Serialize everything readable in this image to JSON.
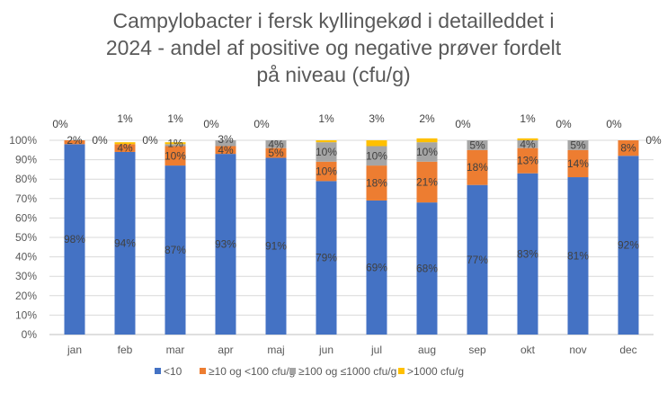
{
  "chart_data": {
    "type": "bar",
    "stacked": true,
    "title_lines": [
      "Campylobacter i fersk kyllingekød i detailleddet i",
      "2024 - andel af positive og negative prøver fordelt",
      "på niveau (cfu/g)"
    ],
    "categories": [
      "jan",
      "feb",
      "mar",
      "apr",
      "maj",
      "jun",
      "jul",
      "aug",
      "sep",
      "okt",
      "nov",
      "dec"
    ],
    "ylim": [
      0,
      100
    ],
    "yticks": [
      "0%",
      "10%",
      "20%",
      "30%",
      "40%",
      "50%",
      "60%",
      "70%",
      "80%",
      "90%",
      "100%"
    ],
    "grid": true,
    "legend_position": "bottom",
    "series": [
      {
        "name": "<10",
        "color": "#4472C4",
        "values": [
          98,
          94,
          87,
          93,
          91,
          79,
          69,
          68,
          77,
          83,
          81,
          92
        ],
        "labels": [
          "98%",
          "94%",
          "87%",
          "93%",
          "91%",
          "79%",
          "69%",
          "68%",
          "77%",
          "83%",
          "81%",
          "92%"
        ]
      },
      {
        "name": "≥10 og <100 cfu/g",
        "color": "#ED7D31",
        "values": [
          2,
          4,
          10,
          4,
          5,
          10,
          18,
          21,
          18,
          13,
          14,
          8
        ],
        "labels": [
          "2%",
          "4%",
          "10%",
          "4%",
          "5%",
          "10%",
          "18%",
          "21%",
          "18%",
          "13%",
          "14%",
          "8%"
        ]
      },
      {
        "name": "≥100 og ≤1000 cfu/g",
        "color": "#A5A5A5",
        "values": [
          0,
          0,
          1,
          3,
          4,
          10,
          10,
          10,
          5,
          4,
          5,
          0
        ],
        "labels": [
          "0%",
          "0%",
          "1%",
          "3%",
          "4%",
          "10%",
          "10%",
          "10%",
          "5%",
          "4%",
          "5%",
          "0%"
        ]
      },
      {
        "name": ">1000 cfu/g",
        "color": "#FFC000",
        "values": [
          0,
          1,
          1,
          0,
          0,
          1,
          3,
          2,
          0,
          1,
          0,
          0
        ],
        "labels": [
          "0%",
          "1%",
          "1%",
          "0%",
          "0%",
          "1%",
          "3%",
          "2%",
          "0%",
          "1%",
          "0%",
          "0%"
        ]
      }
    ]
  }
}
